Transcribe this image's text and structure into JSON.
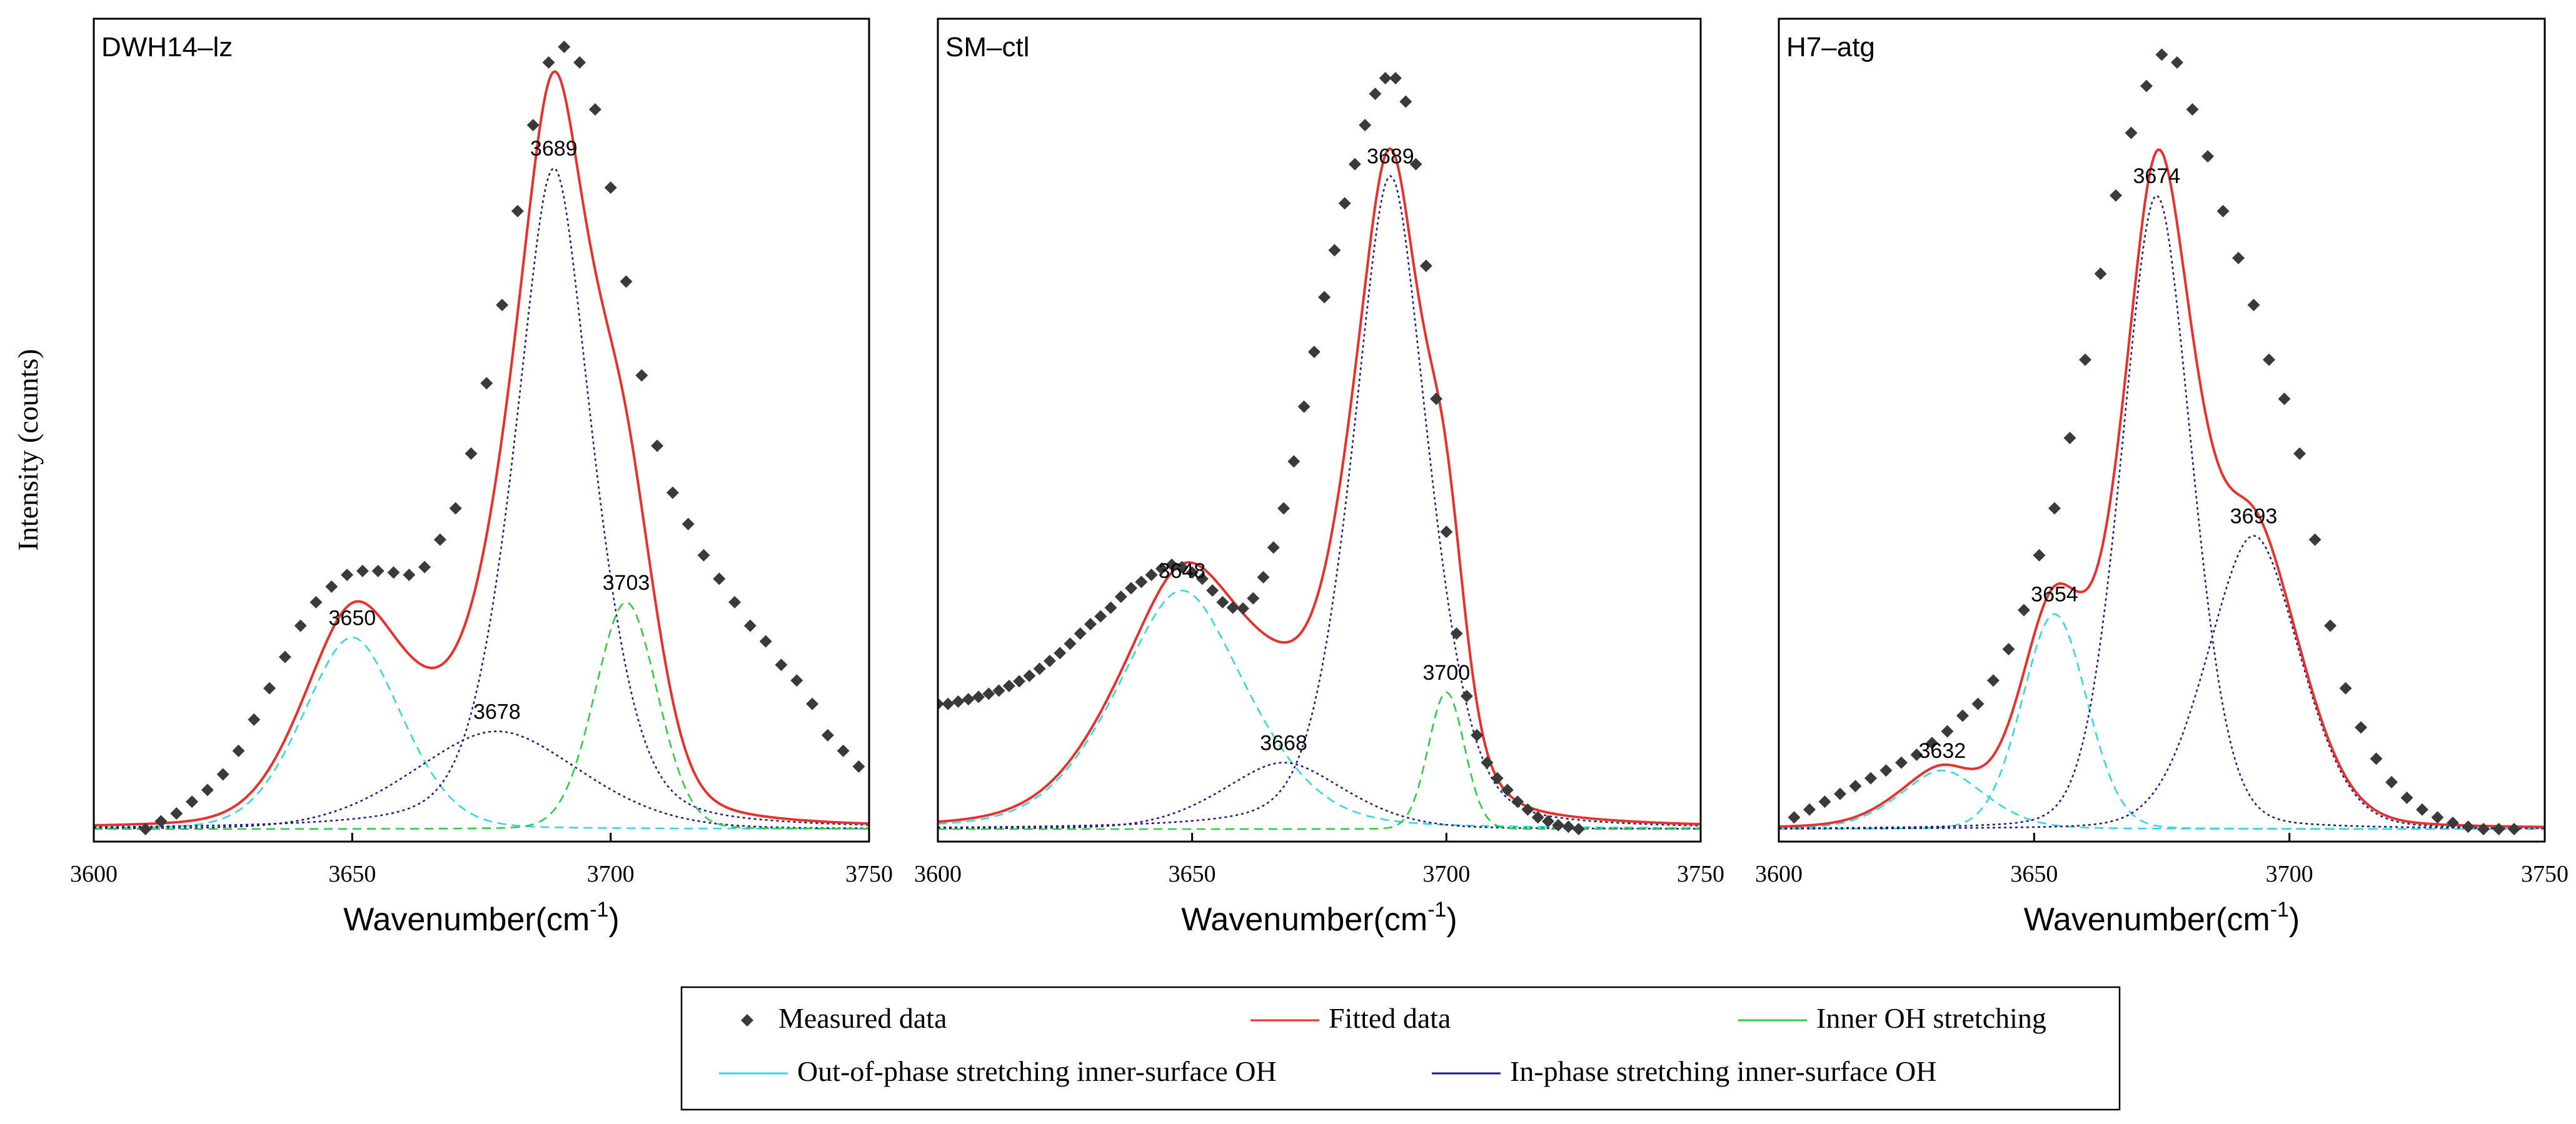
{
  "ylabel": "Intensity (counts)",
  "legend": {
    "placement": "bottom-center",
    "items": [
      {
        "label": "Measured data",
        "key": "measured"
      },
      {
        "label": "Fitted data",
        "key": "fitted"
      },
      {
        "label": "Inner OH stretching",
        "key": "inner"
      },
      {
        "label": "Out-of-phase stretching inner-surface OH",
        "key": "outphase"
      },
      {
        "label": "In-phase stretching inner-surface OH",
        "key": "inphase"
      }
    ]
  },
  "colors": {
    "measured": "#3a3a3a",
    "fitted": "#e8312a",
    "inner": "#2ecc40",
    "outphase": "#33d6e6",
    "inphase": "#1a1a8c",
    "axis": "#000000"
  },
  "chart_data": [
    {
      "type": "scatter",
      "title": "DWH14–lz",
      "xlabel_main": "Wavenumber(cm",
      "xlabel_sup": "-1",
      "xlabel_close": ")",
      "xlim": [
        3600,
        3750
      ],
      "ylim": [
        0,
        1
      ],
      "xticks": [
        3600,
        3650,
        3700,
        3750
      ],
      "xtick_labels": [
        "3600",
        "3650",
        "3700",
        "3750"
      ],
      "components": [
        {
          "role": "outphase",
          "center": 3650,
          "height": 0.245,
          "width": 10,
          "eta": 0.2,
          "label": "3650"
        },
        {
          "role": "inphase",
          "center": 3678,
          "height": 0.125,
          "width": 17,
          "eta": 0.2,
          "label": "3678"
        },
        {
          "role": "inphase",
          "center": 3689,
          "height": 0.845,
          "width": 8.6,
          "eta": 0.45,
          "label": "3689"
        },
        {
          "role": "inner",
          "center": 3703,
          "height": 0.29,
          "width": 6.2,
          "eta": 0.1,
          "label": "3703"
        }
      ],
      "measured": {
        "x": [
          3610,
          3613,
          3616,
          3619,
          3622,
          3625,
          3628,
          3631,
          3634,
          3637,
          3640,
          3643,
          3646,
          3649,
          3652,
          3655,
          3658,
          3661,
          3664,
          3667,
          3670,
          3673,
          3676,
          3679,
          3682,
          3685,
          3688,
          3691,
          3694,
          3697,
          3700,
          3703,
          3706,
          3709,
          3712,
          3715,
          3718,
          3721,
          3724,
          3727,
          3730,
          3733,
          3736,
          3739,
          3742,
          3745,
          3748
        ],
        "y": [
          0.0,
          0.01,
          0.02,
          0.035,
          0.05,
          0.07,
          0.1,
          0.14,
          0.18,
          0.22,
          0.26,
          0.29,
          0.31,
          0.325,
          0.33,
          0.33,
          0.328,
          0.325,
          0.335,
          0.37,
          0.41,
          0.48,
          0.57,
          0.67,
          0.79,
          0.9,
          0.98,
          1.0,
          0.98,
          0.92,
          0.82,
          0.7,
          0.58,
          0.49,
          0.43,
          0.39,
          0.35,
          0.32,
          0.29,
          0.26,
          0.24,
          0.21,
          0.19,
          0.16,
          0.12,
          0.1,
          0.08
        ]
      }
    },
    {
      "type": "scatter",
      "title": "SM–ctl",
      "xlabel_main": "Wavenumber(cm",
      "xlabel_sup": "-1",
      "xlabel_close": ")",
      "xlim": [
        3600,
        3750
      ],
      "ylim": [
        0,
        1
      ],
      "xticks": [
        3600,
        3650,
        3700,
        3750
      ],
      "xtick_labels": [
        "3600",
        "3650",
        "3700",
        "3750"
      ],
      "components": [
        {
          "role": "outphase",
          "center": 3648,
          "height": 0.305,
          "width": 14,
          "eta": 0.35,
          "label": "3648"
        },
        {
          "role": "inphase",
          "center": 3668,
          "height": 0.085,
          "width": 13,
          "eta": 0.3,
          "label": "3668"
        },
        {
          "role": "inphase",
          "center": 3689,
          "height": 0.835,
          "width": 8.3,
          "eta": 0.4,
          "label": "3689"
        },
        {
          "role": "inner",
          "center": 3700,
          "height": 0.175,
          "width": 3.6,
          "eta": 0.05,
          "label": "3700"
        }
      ],
      "measured": {
        "x": [
          3600,
          3602,
          3604,
          3606,
          3608,
          3610,
          3612,
          3614,
          3616,
          3618,
          3620,
          3622,
          3624,
          3626,
          3628,
          3630,
          3632,
          3634,
          3636,
          3638,
          3640,
          3642,
          3644,
          3646,
          3648,
          3650,
          3652,
          3654,
          3656,
          3658,
          3660,
          3662,
          3664,
          3666,
          3668,
          3670,
          3672,
          3674,
          3676,
          3678,
          3680,
          3682,
          3684,
          3686,
          3688,
          3690,
          3692,
          3694,
          3696,
          3698,
          3700,
          3702,
          3704,
          3706,
          3708,
          3710,
          3712,
          3714,
          3716,
          3718,
          3720,
          3722,
          3724,
          3726
        ],
        "y": [
          0.16,
          0.16,
          0.163,
          0.166,
          0.169,
          0.173,
          0.177,
          0.183,
          0.189,
          0.196,
          0.205,
          0.215,
          0.225,
          0.237,
          0.25,
          0.262,
          0.272,
          0.283,
          0.297,
          0.308,
          0.316,
          0.325,
          0.333,
          0.338,
          0.335,
          0.328,
          0.32,
          0.305,
          0.29,
          0.283,
          0.282,
          0.295,
          0.322,
          0.36,
          0.41,
          0.47,
          0.54,
          0.61,
          0.68,
          0.74,
          0.8,
          0.85,
          0.9,
          0.94,
          0.96,
          0.96,
          0.93,
          0.85,
          0.72,
          0.55,
          0.38,
          0.25,
          0.17,
          0.12,
          0.085,
          0.065,
          0.05,
          0.035,
          0.025,
          0.015,
          0.01,
          0.005,
          0.003,
          0.0
        ]
      }
    },
    {
      "type": "scatter",
      "title": "H7–atg",
      "xlabel_main": "Wavenumber(cm",
      "xlabel_sup": "-1",
      "xlabel_close": ")",
      "xlim": [
        3600,
        3750
      ],
      "ylim": [
        0,
        1
      ],
      "xticks": [
        3600,
        3650,
        3700,
        3750
      ],
      "xtick_labels": [
        "3600",
        "3650",
        "3700",
        "3750"
      ],
      "components": [
        {
          "role": "outphase",
          "center": 3632,
          "height": 0.075,
          "width": 9,
          "eta": 0.3,
          "label": "3632"
        },
        {
          "role": "outphase",
          "center": 3654,
          "height": 0.275,
          "width": 6.5,
          "eta": 0.1,
          "label": "3654"
        },
        {
          "role": "inphase",
          "center": 3674,
          "height": 0.81,
          "width": 7.2,
          "eta": 0.2,
          "label": "3674"
        },
        {
          "role": "inphase",
          "center": 3693,
          "height": 0.375,
          "width": 9.5,
          "eta": 0.2,
          "label": "3693"
        }
      ],
      "measured": {
        "x": [
          3603,
          3606,
          3609,
          3612,
          3615,
          3618,
          3621,
          3624,
          3627,
          3630,
          3633,
          3636,
          3639,
          3642,
          3645,
          3648,
          3651,
          3654,
          3657,
          3660,
          3663,
          3666,
          3669,
          3672,
          3675,
          3678,
          3681,
          3684,
          3687,
          3690,
          3693,
          3696,
          3699,
          3702,
          3705,
          3708,
          3711,
          3714,
          3717,
          3720,
          3723,
          3726,
          3729,
          3732,
          3735,
          3738,
          3741,
          3744
        ],
        "y": [
          0.015,
          0.025,
          0.035,
          0.045,
          0.055,
          0.065,
          0.075,
          0.085,
          0.095,
          0.11,
          0.125,
          0.145,
          0.16,
          0.19,
          0.23,
          0.28,
          0.35,
          0.41,
          0.5,
          0.6,
          0.71,
          0.81,
          0.89,
          0.95,
          0.99,
          0.98,
          0.92,
          0.86,
          0.79,
          0.73,
          0.67,
          0.6,
          0.55,
          0.48,
          0.37,
          0.26,
          0.18,
          0.13,
          0.09,
          0.06,
          0.04,
          0.025,
          0.015,
          0.008,
          0.003,
          0.0,
          0.0,
          0.0
        ]
      }
    }
  ]
}
